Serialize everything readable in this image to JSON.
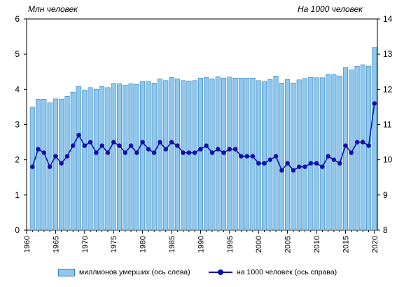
{
  "chart_data": {
    "type": "bar+line",
    "left_axis_label": "Млн  человек",
    "right_axis_label": "На 1000 человек",
    "x": [
      1961,
      1962,
      1963,
      1964,
      1965,
      1966,
      1967,
      1968,
      1969,
      1970,
      1971,
      1972,
      1973,
      1974,
      1975,
      1976,
      1977,
      1978,
      1979,
      1980,
      1981,
      1982,
      1983,
      1984,
      1985,
      1986,
      1987,
      1988,
      1989,
      1990,
      1991,
      1992,
      1993,
      1994,
      1995,
      1996,
      1997,
      1998,
      1999,
      2000,
      2001,
      2002,
      2003,
      2004,
      2005,
      2006,
      2007,
      2008,
      2009,
      2010,
      2011,
      2012,
      2013,
      2014,
      2015,
      2016,
      2017,
      2018,
      2019,
      2020
    ],
    "x_ticks": [
      1960,
      1965,
      1970,
      1975,
      1980,
      1985,
      1990,
      1995,
      2000,
      2005,
      2010,
      2015,
      2020
    ],
    "y_left_ticks": [
      0,
      1,
      2,
      3,
      4,
      5,
      6
    ],
    "y_right_ticks": [
      8,
      9,
      10,
      11,
      12,
      13,
      14
    ],
    "ylim_left": [
      0,
      6
    ],
    "ylim_right": [
      8,
      14
    ],
    "grid": "none",
    "legend_position": "bottom",
    "series": [
      {
        "name": "миллионов  умерших (ось слева)",
        "kind": "bar",
        "axis": "left",
        "color": "#8ec8ee",
        "edge_color": "#3a82b8",
        "values": [
          3.5,
          3.72,
          3.72,
          3.62,
          3.73,
          3.72,
          3.8,
          3.92,
          4.08,
          3.98,
          4.05,
          4.0,
          4.08,
          4.05,
          4.17,
          4.16,
          4.12,
          4.16,
          4.14,
          4.23,
          4.22,
          4.18,
          4.3,
          4.25,
          4.34,
          4.3,
          4.25,
          4.24,
          4.25,
          4.32,
          4.34,
          4.3,
          4.36,
          4.32,
          4.35,
          4.32,
          4.32,
          4.32,
          4.32,
          4.25,
          4.22,
          4.28,
          4.38,
          4.18,
          4.28,
          4.18,
          4.27,
          4.31,
          4.34,
          4.33,
          4.33,
          4.43,
          4.42,
          4.38,
          4.62,
          4.55,
          4.66,
          4.7,
          4.66,
          5.19
        ]
      },
      {
        "name": "на 1000 человек (ось справа)",
        "kind": "line",
        "axis": "right",
        "color": "#1010b0",
        "values": [
          9.8,
          10.3,
          10.2,
          9.8,
          10.1,
          9.9,
          10.1,
          10.4,
          10.7,
          10.4,
          10.5,
          10.2,
          10.4,
          10.2,
          10.5,
          10.4,
          10.2,
          10.4,
          10.2,
          10.5,
          10.3,
          10.2,
          10.5,
          10.3,
          10.5,
          10.4,
          10.2,
          10.2,
          10.2,
          10.3,
          10.4,
          10.2,
          10.3,
          10.2,
          10.3,
          10.3,
          10.1,
          10.1,
          10.1,
          9.9,
          9.9,
          10.0,
          10.1,
          9.7,
          9.9,
          9.7,
          9.8,
          9.8,
          9.9,
          9.9,
          9.8,
          10.1,
          10.0,
          9.9,
          10.4,
          10.2,
          10.5,
          10.5,
          10.4,
          11.6
        ]
      }
    ]
  }
}
